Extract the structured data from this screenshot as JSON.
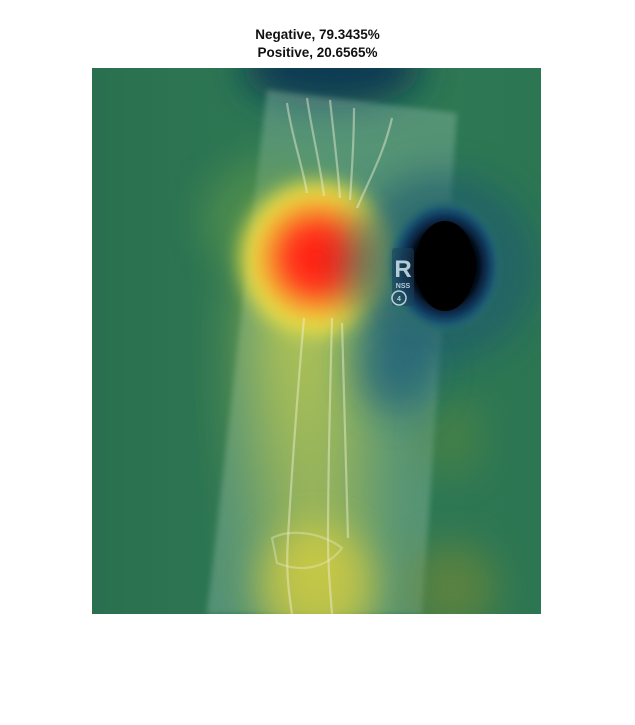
{
  "figure": {
    "title_lines": [
      "Negative, 79.3435%",
      "Positive, 20.6565%"
    ]
  },
  "image_overlay": {
    "marker_letter": "R",
    "marker_text": "NSS",
    "marker_circle_text": "4"
  },
  "colors": {
    "background_green": "#2f7a55",
    "hot_red": "#ff2a1a",
    "warm_yellow": "#e6e046",
    "cold_dark": "#050505",
    "cool_teal": "#1e5f78"
  }
}
